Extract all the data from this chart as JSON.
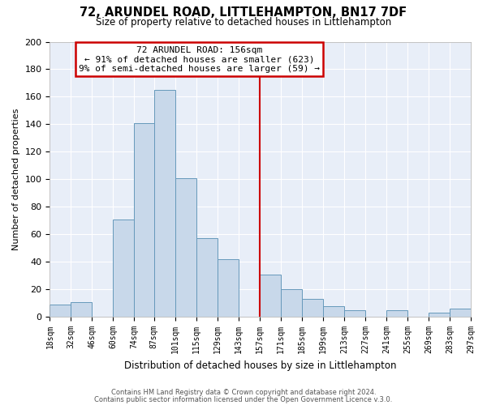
{
  "title": "72, ARUNDEL ROAD, LITTLEHAMPTON, BN17 7DF",
  "subtitle": "Size of property relative to detached houses in Littlehampton",
  "xlabel": "Distribution of detached houses by size in Littlehampton",
  "ylabel": "Number of detached properties",
  "footer1": "Contains HM Land Registry data © Crown copyright and database right 2024.",
  "footer2": "Contains public sector information licensed under the Open Government Licence v.3.0.",
  "bar_color": "#c8d8ea",
  "bar_edge_color": "#6699bb",
  "background_color": "#e8eef8",
  "annotation_box_edge": "#cc0000",
  "vline_color": "#cc0000",
  "annotation_title": "72 ARUNDEL ROAD: 156sqm",
  "annotation_line1": "← 91% of detached houses are smaller (623)",
  "annotation_line2": "9% of semi-detached houses are larger (59) →",
  "bins": [
    18,
    32,
    46,
    60,
    74,
    87,
    101,
    115,
    129,
    143,
    157,
    171,
    185,
    199,
    213,
    227,
    241,
    255,
    269,
    283,
    297
  ],
  "counts": [
    9,
    11,
    0,
    71,
    141,
    165,
    101,
    57,
    42,
    0,
    31,
    20,
    13,
    8,
    5,
    0,
    5,
    0,
    3,
    6
  ],
  "vline_x": 157,
  "ylim": [
    0,
    200
  ],
  "yticks": [
    0,
    20,
    40,
    60,
    80,
    100,
    120,
    140,
    160,
    180,
    200
  ],
  "xtick_labels": [
    "18sqm",
    "32sqm",
    "46sqm",
    "60sqm",
    "74sqm",
    "87sqm",
    "101sqm",
    "115sqm",
    "129sqm",
    "143sqm",
    "157sqm",
    "171sqm",
    "185sqm",
    "199sqm",
    "213sqm",
    "227sqm",
    "241sqm",
    "255sqm",
    "269sqm",
    "283sqm",
    "297sqm"
  ]
}
